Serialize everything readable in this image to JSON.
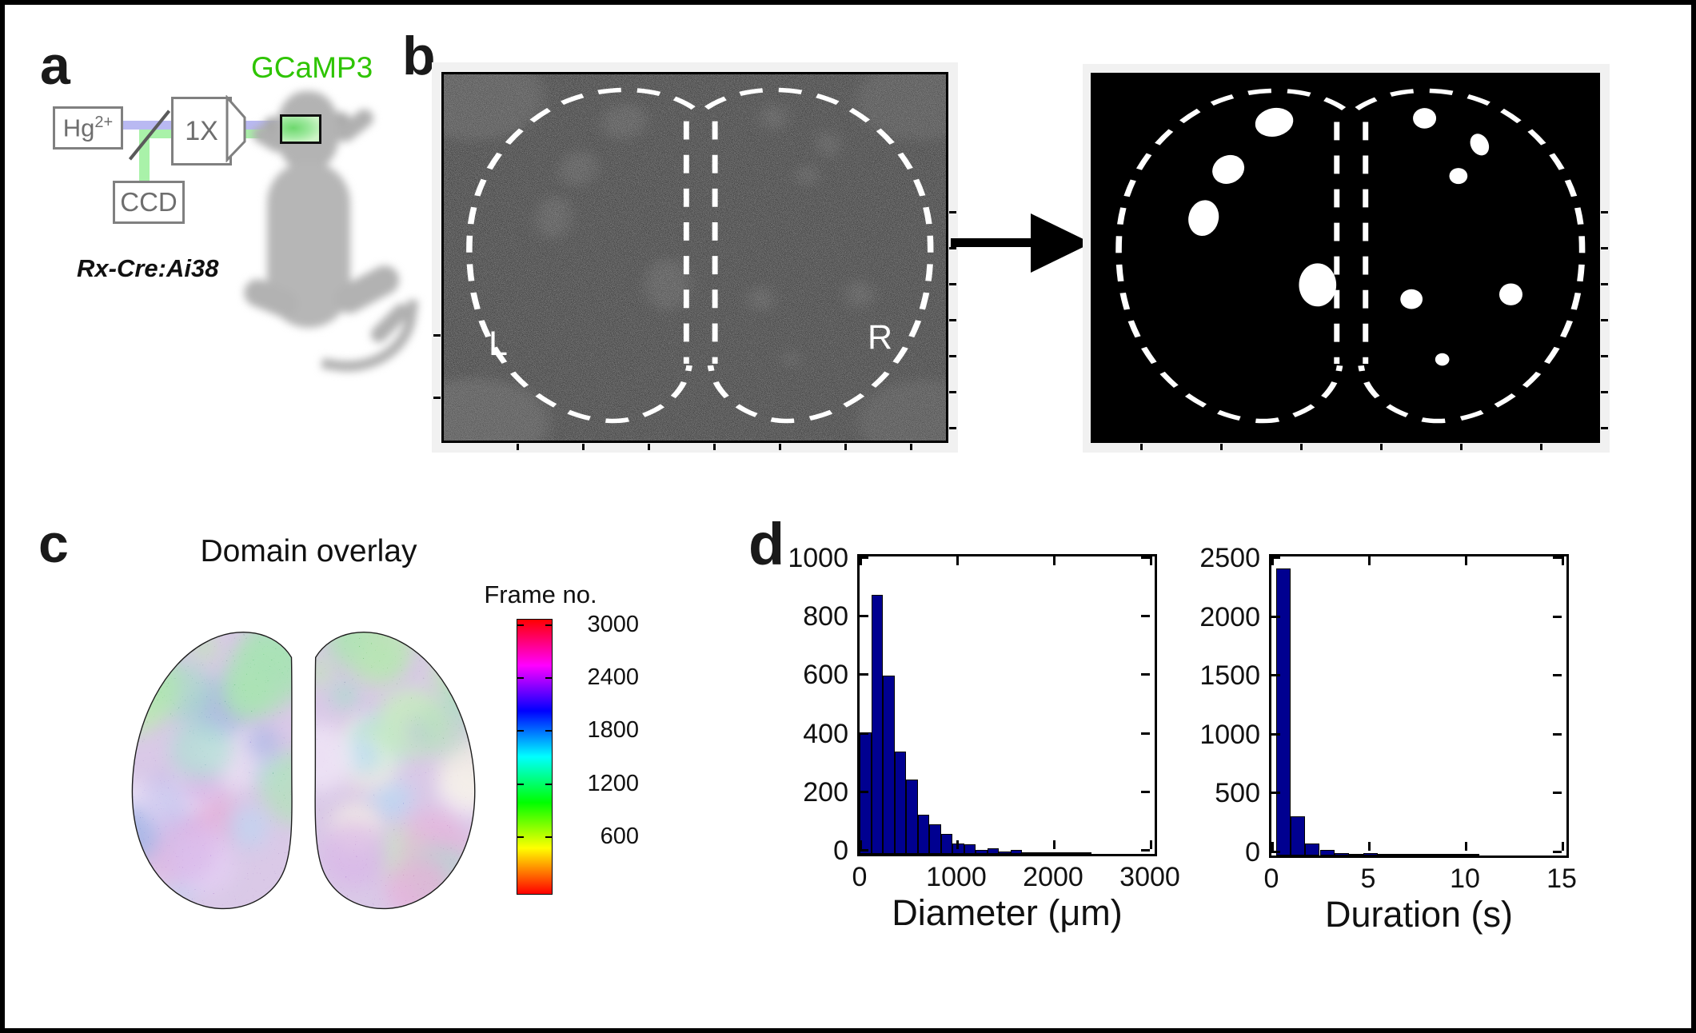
{
  "panel_a": {
    "label": "a",
    "gcamp_label": "GCaMP3",
    "lamp_label": "Hg",
    "lamp_sup": "2+",
    "objective_label": "1X",
    "camera_label": "CCD",
    "mouse_line_label": "Rx-Cre:Ai38",
    "colors": {
      "excitation_beam": "#b9b9f2",
      "emission_beam": "#a9f2a9",
      "gcamp_green": "#2ec400",
      "outline_gray": "#808080",
      "label_gray": "#6e6e6e"
    }
  },
  "panel_b": {
    "label": "b",
    "raw_image": {
      "left_hemisphere_label": "L",
      "right_hemisphere_label": "R"
    },
    "domain_blobs": [
      {
        "x": 0.359,
        "y": 0.129,
        "rx": 0.036,
        "ry": 0.041,
        "rot": 35
      },
      {
        "x": 0.268,
        "y": 0.258,
        "rx": 0.031,
        "ry": 0.04,
        "rot": 15
      },
      {
        "x": 0.219,
        "y": 0.391,
        "rx": 0.03,
        "ry": 0.049,
        "rot": 5
      },
      {
        "x": 0.445,
        "y": 0.574,
        "rx": 0.037,
        "ry": 0.059,
        "rot": 0
      },
      {
        "x": 0.657,
        "y": 0.118,
        "rx": 0.023,
        "ry": 0.028,
        "rot": 0
      },
      {
        "x": 0.766,
        "y": 0.19,
        "rx": 0.018,
        "ry": 0.03,
        "rot": -12
      },
      {
        "x": 0.724,
        "y": 0.276,
        "rx": 0.018,
        "ry": 0.022,
        "rot": 0
      },
      {
        "x": 0.631,
        "y": 0.613,
        "rx": 0.022,
        "ry": 0.027,
        "rot": 0
      },
      {
        "x": 0.828,
        "y": 0.6,
        "rx": 0.023,
        "ry": 0.03,
        "rot": 0
      },
      {
        "x": 0.692,
        "y": 0.778,
        "rx": 0.014,
        "ry": 0.017,
        "rot": 0
      }
    ]
  },
  "panel_c": {
    "label": "c",
    "title": "Domain overlay",
    "colorbar": {
      "title": "Frame no.",
      "tick_labels": [
        "3000",
        "2400",
        "1800",
        "1200",
        "600"
      ],
      "tick_values": [
        3000,
        2400,
        1800,
        1200,
        600
      ],
      "value_range": [
        -60,
        3060
      ],
      "gradient_stops": [
        "#ff0000",
        "#ff00ff",
        "#0000ff",
        "#00ffff",
        "#00ff00",
        "#ffff00",
        "#ff0000"
      ]
    },
    "palette": {
      "base": "#b493cf",
      "spots": [
        "#d45cb0",
        "#b36ad0",
        "#7d6fd6",
        "#6fb3e8",
        "#49c99d",
        "#5ecb6a",
        "#8fd97f",
        "#f2eec9",
        "#ead9f5",
        "#e87fa8",
        "#3f64c9",
        "#c9a0e8"
      ],
      "top_spots": [
        "#55c964",
        "#7fd06a",
        "#3fbf88"
      ]
    }
  },
  "panel_d": {
    "label": "d"
  },
  "chart_data": [
    {
      "type": "bar",
      "title": "",
      "xlabel": "Diameter (μm)",
      "ylabel": "",
      "bin_start": 0,
      "bin_width": 120,
      "values": [
        415,
        885,
        610,
        350,
        255,
        135,
        100,
        67,
        36,
        33,
        13,
        20,
        9,
        13,
        6,
        4,
        4,
        1,
        1,
        2
      ],
      "xlim": [
        0,
        3000
      ],
      "ylim": [
        0,
        1000
      ],
      "xticks": [
        0,
        1000,
        2000,
        3000
      ],
      "yticks": [
        0,
        200,
        400,
        600,
        800,
        1000
      ],
      "bar_color": "#000090",
      "grid": false,
      "legend": null
    },
    {
      "type": "bar",
      "title": "",
      "xlabel": "Duration (s)",
      "ylabel": "",
      "bin_start": 0.25,
      "bin_width": 0.75,
      "values": [
        2440,
        333,
        105,
        50,
        22,
        12,
        20,
        4,
        6,
        5,
        4,
        2,
        3,
        2
      ],
      "xlim": [
        0,
        15
      ],
      "ylim": [
        0,
        2500
      ],
      "xticks": [
        0,
        5,
        10,
        15
      ],
      "yticks": [
        0,
        500,
        1000,
        1500,
        2000,
        2500
      ],
      "bar_color": "#000090",
      "grid": false,
      "legend": null
    }
  ]
}
